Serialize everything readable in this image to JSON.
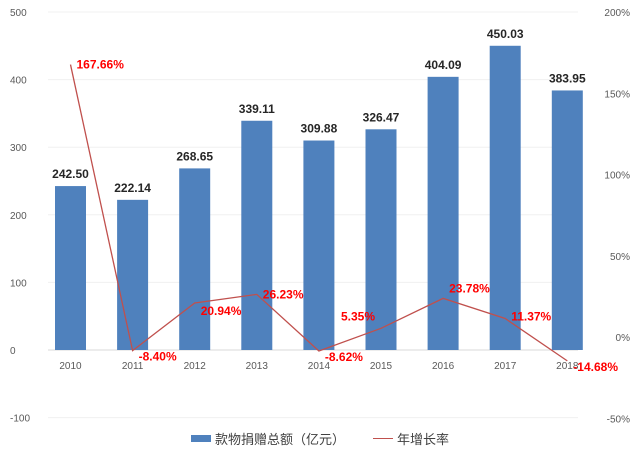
{
  "chart_data": {
    "type": "bar+line",
    "title": "",
    "categories": [
      "2010",
      "2011",
      "2012",
      "2013",
      "2014",
      "2015",
      "2016",
      "2017",
      "2018"
    ],
    "series": [
      {
        "name": "款物捐赠总额（亿元）",
        "type": "bar",
        "axis": "left",
        "color": "#4f81bd",
        "values": [
          242.5,
          222.14,
          268.65,
          339.11,
          309.88,
          326.47,
          404.09,
          450.03,
          383.95
        ],
        "labels": [
          "242.50",
          "222.14",
          "268.65",
          "339.11",
          "309.88",
          "326.47",
          "404.09",
          "450.03",
          "383.95"
        ]
      },
      {
        "name": "年增长率",
        "type": "line",
        "axis": "right",
        "color": "#c0504d",
        "label_color": "#ff0000",
        "values": [
          167.66,
          -8.4,
          20.94,
          26.23,
          -8.62,
          5.35,
          23.78,
          11.37,
          -14.68
        ],
        "labels": [
          "167.66%",
          "-8.40%",
          "20.94%",
          "26.23%",
          "-8.62%",
          "5.35%",
          "23.78%",
          "11.37%",
          "-14.68%"
        ]
      }
    ],
    "left_axis": {
      "ylim": [
        -100,
        500
      ],
      "ticks": [
        "500",
        "400",
        "300",
        "200",
        "100",
        "0",
        "-100"
      ]
    },
    "right_axis": {
      "ylim": [
        -50,
        200
      ],
      "ticks": [
        "200%",
        "150%",
        "100%",
        "50%",
        "0%",
        "-50%"
      ]
    },
    "grid": true,
    "legend_position": "bottom"
  },
  "legend": {
    "bar_label": "款物捐赠总额（亿元）",
    "line_label": "年增长率"
  }
}
